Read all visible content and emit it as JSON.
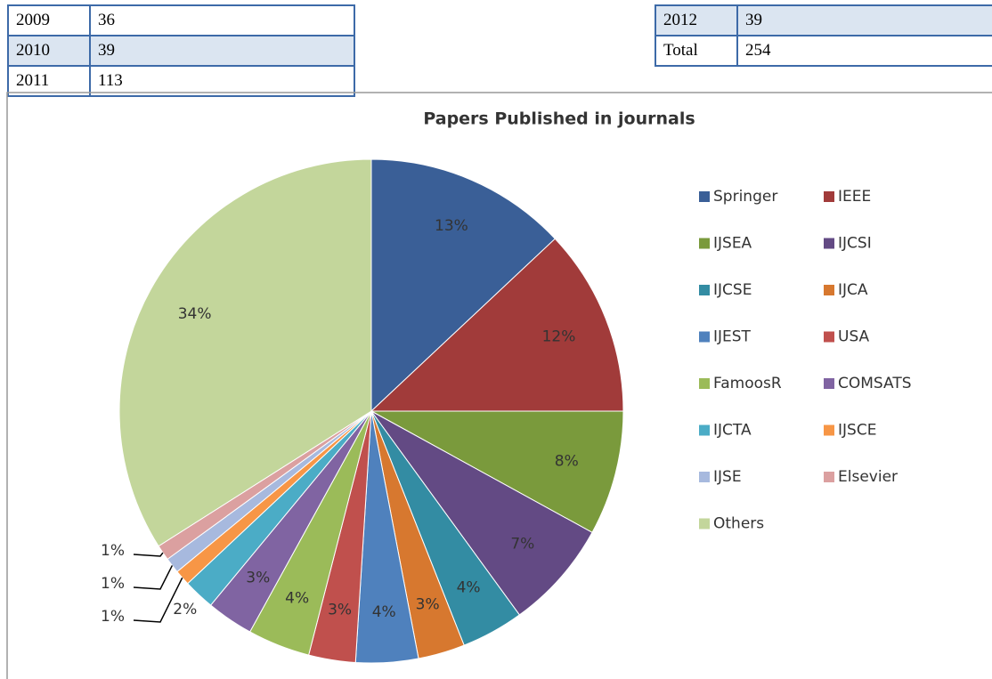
{
  "tables": [
    {
      "rows": [
        [
          "2009",
          "36"
        ],
        [
          "2010",
          "39"
        ],
        [
          "2011",
          "113"
        ]
      ]
    },
    {
      "rows": [
        [
          "2012",
          "39"
        ],
        [
          "Total",
          "254"
        ]
      ]
    }
  ],
  "chart_data": {
    "type": "pie",
    "title": "Papers Published in journals",
    "categories": [
      "Springer",
      "IEEE",
      "IJSEA",
      "IJCSI",
      "IJCSE",
      "IJCA",
      "IJEST",
      "USA",
      "FamoosR",
      "COMSATS",
      "IJCTA",
      "IJSCE",
      "IJSE",
      "Elsevier",
      "Others"
    ],
    "values": [
      13,
      12,
      8,
      7,
      4,
      3,
      4,
      3,
      4,
      3,
      2,
      1,
      1,
      1,
      34
    ],
    "value_labels": [
      "13%",
      "12%",
      "8%",
      "7%",
      "4%",
      "3%",
      "4%",
      "3%",
      "4%",
      "3%",
      "2%",
      "1%",
      "1%",
      "1%",
      "34%"
    ],
    "colors": [
      "#3a5f97",
      "#a13b3a",
      "#7a9a3c",
      "#634a84",
      "#338ca3",
      "#d7782f",
      "#4f81bd",
      "#c0504d",
      "#9bbb59",
      "#8064a2",
      "#4bacc6",
      "#f79646",
      "#a7b9de",
      "#dba0a0",
      "#c3d69b"
    ],
    "legend": "right"
  }
}
